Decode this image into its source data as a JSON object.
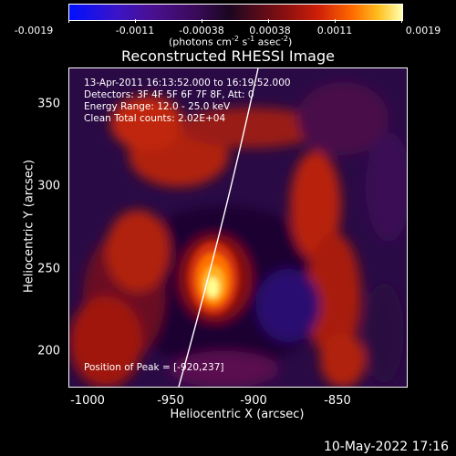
{
  "colorbar": {
    "ticks": [
      "-0.0019",
      "-0.0011",
      "-0.00038",
      "0.00038",
      "0.0011",
      "0.0019"
    ],
    "units_prefix": "(photons cm",
    "units_sup1": "-2",
    "units_mid": " s",
    "units_sup2": "-1",
    "units_mid2": " asec",
    "units_sup3": "-2",
    "units_suffix": ")"
  },
  "title": "Reconstructed RHESSI Image",
  "annotations": {
    "time": "13-Apr-2011 16:13:52.000 to 16:19:52.000",
    "detectors": "Detectors: 3F 4F 5F 6F 7F 8F, Att: 0",
    "energy": "Energy Range: 12.0 - 25.0 keV",
    "clean": "Clean     Total counts: 2.02E+04",
    "peak": "Position of Peak = [-920,237]"
  },
  "axes": {
    "xlabel": "Heliocentric X (arcsec)",
    "ylabel": "Heliocentric Y (arcsec)",
    "xticks": [
      "-1000",
      "-950",
      "-900",
      "-850"
    ],
    "yticks": [
      "350",
      "300",
      "250",
      "200"
    ],
    "xlim": [
      -1011,
      -816
    ],
    "ylim": [
      178,
      373
    ]
  },
  "footer": "10-May-2022 17:16"
}
